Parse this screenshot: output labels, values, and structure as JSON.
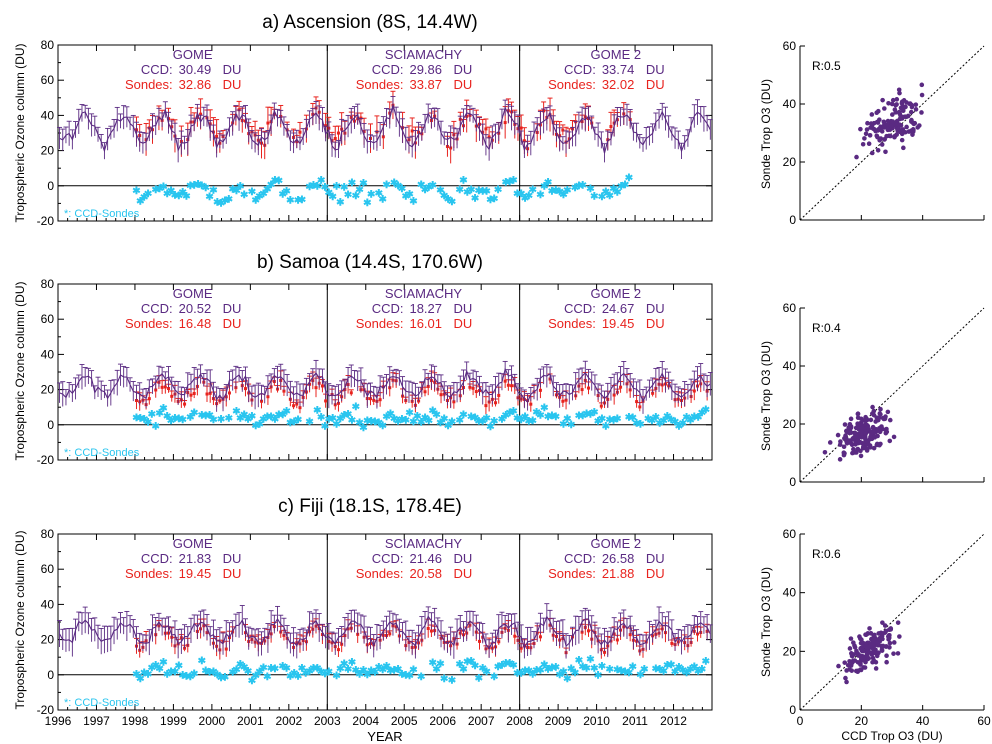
{
  "colors": {
    "ccd": "#5a2a82",
    "sondes": "#e8231e",
    "diff": "#29c5ef",
    "axis": "#000000"
  },
  "shared": {
    "year_ticks": [
      "1996",
      "1997",
      "1998",
      "1999",
      "2000",
      "2001",
      "2002",
      "2003",
      "2004",
      "2005",
      "2006",
      "2007",
      "2008",
      "2009",
      "2010",
      "2011",
      "2012"
    ],
    "xlabel": "YEAR",
    "ylabel": "Tropospheric Ozone column (DU)",
    "y_ticks": [
      "-20",
      "0",
      "20",
      "40",
      "60",
      "80"
    ],
    "ylim": [
      -20,
      80
    ],
    "xlim": [
      1996,
      2013
    ],
    "diff_label": "*: CCD-Sondes",
    "scatter_xlabel": "CCD Trop O3 (DU)",
    "scatter_ylabel": "Sonde Trop O3 (DU)",
    "scatter_ticks": [
      "0",
      "20",
      "40",
      "60"
    ],
    "scatter_lim": [
      0,
      60
    ]
  },
  "chart_data": [
    {
      "type": "line",
      "title": "a) Ascension (8S, 14.4W)",
      "dividers": [
        2003,
        2008
      ],
      "periods": [
        {
          "name": "GOME",
          "ccd_label": "CCD:",
          "ccd_value": "30.49",
          "sondes_label": "Sondes:",
          "sondes_value": "32.86",
          "unit": "DU"
        },
        {
          "name": "SCIAMACHY",
          "ccd_label": "CCD:",
          "ccd_value": "29.86",
          "sondes_label": "Sondes:",
          "sondes_value": "33.87",
          "unit": "DU"
        },
        {
          "name": "GOME 2",
          "ccd_label": "CCD:",
          "ccd_value": "33.74",
          "sondes_label": "Sondes:",
          "sondes_value": "32.02",
          "unit": "DU"
        }
      ],
      "series": [
        {
          "name": "CCD",
          "mean": 32,
          "amplitude": 8,
          "noise": 5,
          "err": 6,
          "range": [
            1996,
            2013
          ]
        },
        {
          "name": "Sondes",
          "mean": 33,
          "amplitude": 7,
          "noise": 6,
          "err": 7,
          "range": [
            1998,
            2010.9
          ]
        },
        {
          "name": "CCD-Sondes",
          "mean": -3,
          "amplitude": 3,
          "noise": 6,
          "range": [
            1998,
            2010.9
          ]
        }
      ],
      "scatter": {
        "r_label": "R:0.5",
        "ccd_mean": 30,
        "ccd_spread": 7,
        "sonde_mean": 33,
        "sonde_spread": 7,
        "r": 0.5,
        "n": 140
      }
    },
    {
      "type": "line",
      "title": "b) Samoa (14.4S, 170.6W)",
      "dividers": [
        2003,
        2008
      ],
      "periods": [
        {
          "name": "GOME",
          "ccd_label": "CCD:",
          "ccd_value": "20.52",
          "sondes_label": "Sondes:",
          "sondes_value": "16.48",
          "unit": "DU"
        },
        {
          "name": "SCIAMACHY",
          "ccd_label": "CCD:",
          "ccd_value": "18.27",
          "sondes_label": "Sondes:",
          "sondes_value": "16.01",
          "unit": "DU"
        },
        {
          "name": "GOME 2",
          "ccd_label": "CCD:",
          "ccd_value": "24.67",
          "sondes_label": "Sondes:",
          "sondes_value": "19.45",
          "unit": "DU"
        }
      ],
      "series": [
        {
          "name": "CCD",
          "mean": 22,
          "amplitude": 6,
          "noise": 4,
          "err": 6,
          "range": [
            1996,
            2013
          ]
        },
        {
          "name": "Sondes",
          "mean": 18,
          "amplitude": 5,
          "noise": 4,
          "err": 4,
          "range": [
            1998,
            2012.9
          ]
        },
        {
          "name": "CCD-Sondes",
          "mean": 4,
          "amplitude": 2,
          "noise": 5,
          "range": [
            1998,
            2012.9
          ]
        }
      ],
      "scatter": {
        "r_label": "R:0.4",
        "ccd_mean": 21,
        "ccd_spread": 6,
        "sonde_mean": 17,
        "sonde_spread": 5,
        "r": 0.4,
        "n": 170
      }
    },
    {
      "type": "line",
      "title": "c) Fiji (18.1S, 178.4E)",
      "dividers": [
        2003,
        2008
      ],
      "periods": [
        {
          "name": "GOME",
          "ccd_label": "CCD:",
          "ccd_value": "21.83",
          "sondes_label": "Sondes:",
          "sondes_value": "19.45",
          "unit": "DU"
        },
        {
          "name": "SCIAMACHY",
          "ccd_label": "CCD:",
          "ccd_value": "21.46",
          "sondes_label": "Sondes:",
          "sondes_value": "20.58",
          "unit": "DU"
        },
        {
          "name": "GOME 2",
          "ccd_label": "CCD:",
          "ccd_value": "26.58",
          "sondes_label": "Sondes:",
          "sondes_value": "21.88",
          "unit": "DU"
        }
      ],
      "series": [
        {
          "name": "CCD",
          "mean": 24,
          "amplitude": 6,
          "noise": 4,
          "err": 7,
          "range": [
            1996,
            2013
          ]
        },
        {
          "name": "Sondes",
          "mean": 21,
          "amplitude": 5,
          "noise": 4,
          "err": 4,
          "range": [
            1998,
            2012.9
          ]
        },
        {
          "name": "CCD-Sondes",
          "mean": 3,
          "amplitude": 2,
          "noise": 5,
          "range": [
            1998,
            2012.9
          ]
        }
      ],
      "scatter": {
        "r_label": "R:0.6",
        "ccd_mean": 23,
        "ccd_spread": 6,
        "sonde_mean": 21,
        "sonde_spread": 6,
        "r": 0.6,
        "n": 150
      }
    }
  ]
}
